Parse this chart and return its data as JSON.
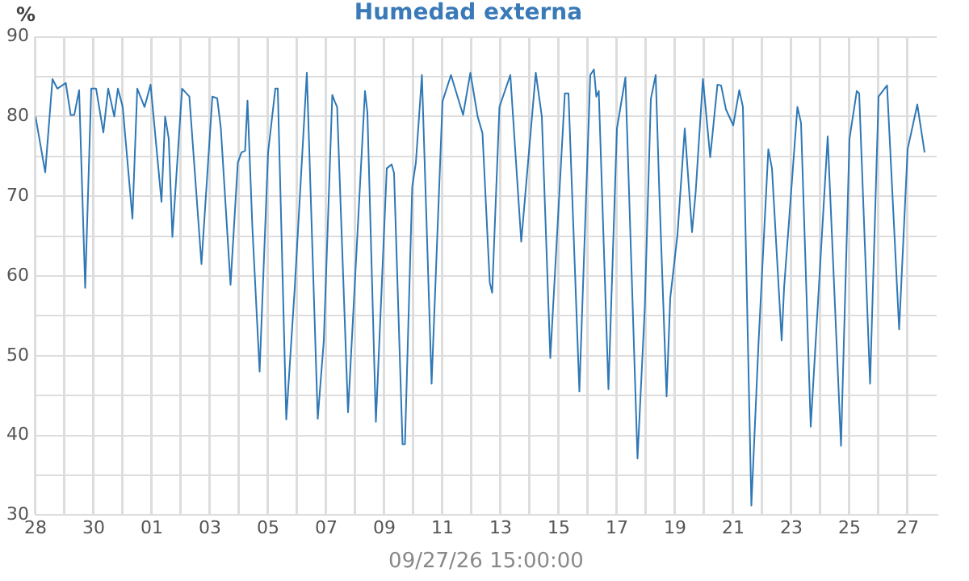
{
  "chart_data": {
    "type": "line",
    "title": "Humedad externa",
    "ylabel": "%",
    "xlabel": "09/27/26 15:00:00",
    "x": [
      "--08-28T00:00",
      "--08-28T08:00",
      "--08-28T14:00",
      "--08-28T18:00",
      "--08-29T01:00",
      "--08-29T05:00",
      "--08-29T08:00",
      "--08-29T12:00",
      "--08-29T17:00",
      "--08-29T22:00",
      "--08-30T02:00",
      "--08-30T08:00",
      "--08-30T12:00",
      "--08-30T17:00",
      "--08-30T20:00",
      "--08-31T00:00",
      "--08-31T08:00",
      "--08-31T12:00",
      "--08-31T18:00",
      "--08-31T23:00",
      "--09-01T08:00",
      "--09-01T11:00",
      "--09-01T14:00",
      "--09-01T17:00",
      "--09-02T01:00",
      "--09-02T07:00",
      "--09-02T17:00",
      "--09-03T02:00",
      "--09-03T06:00",
      "--09-03T09:00",
      "--09-03T17:00",
      "--09-03T23:00",
      "--09-04T02:00",
      "--09-04T05:00",
      "--09-04T07:00",
      "--09-04T11:00",
      "--09-04T17:00",
      "--09-05T00:00",
      "--09-05T06:00",
      "--09-05T08:00",
      "--09-05T15:00",
      "--09-05T22:00",
      "--09-06T08:00",
      "--09-06T17:00",
      "--09-06T22:00",
      "--09-07T05:00",
      "--09-07T07:00",
      "--09-07T09:00",
      "--09-07T18:00",
      "--09-08T08:00",
      "--09-08T10:00",
      "--09-08T17:00",
      "--09-09T02:00",
      "--09-09T06:00",
      "--09-09T08:00",
      "--09-09T15:00",
      "--09-09T17:00",
      "--09-09T23:00",
      "--09-10T02:00",
      "--09-10T07:00",
      "--09-10T15:00",
      "--09-11T00:00",
      "--09-11T07:00",
      "--09-11T17:00",
      "--09-11T23:00",
      "--09-12T05:00",
      "--09-12T09:00",
      "--09-12T15:00",
      "--09-12T17:00",
      "--09-12T23:00",
      "--09-13T08:00",
      "--09-13T17:00",
      "--09-14T05:00",
      "--09-14T10:00",
      "--09-14T17:00",
      "--09-15T05:00",
      "--09-15T08:00",
      "--09-15T17:00",
      "--09-16T02:00",
      "--09-16T05:00",
      "--09-16T07:00",
      "--09-16T09:00",
      "--09-16T17:00",
      "--09-17T00:00",
      "--09-17T07:00",
      "--09-17T17:00",
      "--09-17T23:00",
      "--09-18T04:00",
      "--09-18T08:00",
      "--09-18T11:00",
      "--09-18T17:00",
      "--09-18T20:00",
      "--09-19T02:00",
      "--09-19T08:00",
      "--09-19T14:00",
      "--09-19T17:00",
      "--09-19T23:00",
      "--09-20T05:00",
      "--09-20T11:00",
      "--09-20T14:00",
      "--09-20T18:00",
      "--09-21T00:00",
      "--09-21T05:00",
      "--09-21T08:00",
      "--09-21T15:00",
      "--09-21T21:00",
      "--09-22T05:00",
      "--09-22T08:00",
      "--09-22T16:00",
      "--09-22T18:00",
      "--09-23T05:00",
      "--09-23T08:00",
      "--09-23T16:00",
      "--09-24T06:00",
      "--09-24T17:00",
      "--09-25T00:00",
      "--09-25T06:00",
      "--09-25T08:00",
      "--09-25T17:00",
      "--09-26T00:00",
      "--09-26T07:00",
      "--09-26T17:00",
      "--09-27T00:00",
      "--09-27T08:00",
      "--09-27T14:00"
    ],
    "series": [
      {
        "color": "#2f78b5",
        "values": [
          80,
          73,
          84.7,
          83.5,
          84.2,
          80.2,
          80.2,
          83.3,
          58.5,
          83.5,
          83.5,
          78,
          83.5,
          80,
          83.5,
          81.2,
          67.2,
          83.5,
          81.2,
          84,
          69.3,
          80,
          77.2,
          64.9,
          83.5,
          82.5,
          61.5,
          82.5,
          82.3,
          78.5,
          58.9,
          74.2,
          75.5,
          75.7,
          82,
          66.2,
          48,
          75.5,
          83.5,
          83.5,
          42,
          58.5,
          85.5,
          42.1,
          51.9,
          82.7,
          81.9,
          81.2,
          42.9,
          83.2,
          80.5,
          41.7,
          73.5,
          74,
          72.9,
          38.9,
          38.9,
          71.2,
          74.2,
          85.2,
          46.5,
          81.9,
          85.2,
          80.2,
          85.5,
          80,
          77.9,
          59.2,
          57.9,
          81.2,
          85.2,
          64.3,
          85.5,
          80,
          49.7,
          82.9,
          82.9,
          45.5,
          85.2,
          85.9,
          82.5,
          83.2,
          45.8,
          78.5,
          84.9,
          37.1,
          56,
          82.2,
          85.2,
          70.5,
          44.9,
          57.2,
          65.2,
          78.5,
          65.5,
          70.5,
          84.7,
          74.9,
          84,
          83.9,
          80.9,
          78.9,
          83.3,
          81.2,
          31.2,
          51.9,
          75.9,
          73.5,
          51.9,
          58.5,
          81.2,
          79.2,
          41.1,
          77.5,
          38.7,
          77.2,
          83.2,
          82.9,
          46.5,
          82.5,
          83.9,
          53.3,
          75.9,
          81.5,
          75.5
        ]
      }
    ],
    "xlim": [
      "--08-28",
      "--09-28"
    ],
    "xticks": [
      {
        "value": "--08-28",
        "label": "28"
      },
      {
        "value": "--08-29",
        "label": null
      },
      {
        "value": "--08-30",
        "label": "30"
      },
      {
        "value": "--08-31",
        "label": null
      },
      {
        "value": "--09-01",
        "label": "01"
      },
      {
        "value": "--09-02",
        "label": null
      },
      {
        "value": "--09-03",
        "label": "03"
      },
      {
        "value": "--09-04",
        "label": null
      },
      {
        "value": "--09-05",
        "label": "05"
      },
      {
        "value": "--09-06",
        "label": null
      },
      {
        "value": "--09-07",
        "label": "07"
      },
      {
        "value": "--09-08",
        "label": null
      },
      {
        "value": "--09-09",
        "label": "09"
      },
      {
        "value": "--09-10",
        "label": null
      },
      {
        "value": "--09-11",
        "label": "11"
      },
      {
        "value": "--09-12",
        "label": null
      },
      {
        "value": "--09-13",
        "label": "13"
      },
      {
        "value": "--09-14",
        "label": null
      },
      {
        "value": "--09-15",
        "label": "15"
      },
      {
        "value": "--09-16",
        "label": null
      },
      {
        "value": "--09-17",
        "label": "17"
      },
      {
        "value": "--09-18",
        "label": null
      },
      {
        "value": "--09-19",
        "label": "19"
      },
      {
        "value": "--09-20",
        "label": null
      },
      {
        "value": "--09-21",
        "label": "21"
      },
      {
        "value": "--09-22",
        "label": null
      },
      {
        "value": "--09-23",
        "label": "23"
      },
      {
        "value": "--09-24",
        "label": null
      },
      {
        "value": "--09-25",
        "label": "25"
      },
      {
        "value": "--09-26",
        "label": null
      },
      {
        "value": "--09-27",
        "label": "27"
      }
    ],
    "ylim": [
      30,
      90
    ],
    "yticks": [
      30,
      {
        "value": 35,
        "label": null
      },
      40,
      {
        "value": 45,
        "label": null
      },
      50,
      {
        "value": 55,
        "label": null
      },
      60,
      {
        "value": 65,
        "label": null
      },
      70,
      {
        "value": 75,
        "label": null
      },
      80,
      {
        "value": 85,
        "label": null
      },
      90
    ],
    "grid": true,
    "marker": "none",
    "line_style": "solid"
  }
}
